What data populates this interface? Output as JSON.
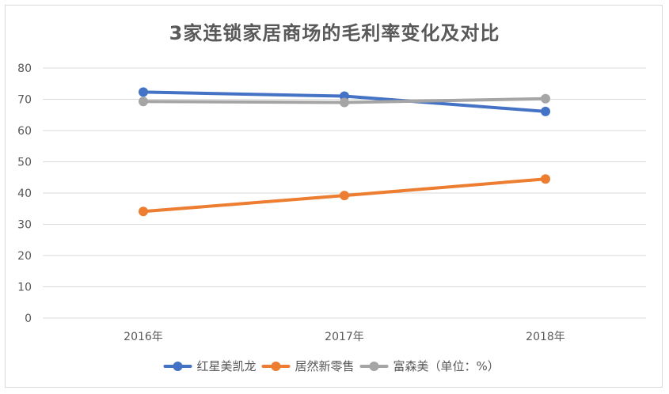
{
  "chart_data": {
    "type": "line",
    "title": "3家连锁家居商场的毛利率变化及对比",
    "categories": [
      "2016年",
      "2017年",
      "2018年"
    ],
    "series": [
      {
        "name": "红星美凯龙",
        "values": [
          72.3,
          71.0,
          66.1
        ],
        "color": "#4472c4"
      },
      {
        "name": "居然新零售",
        "values": [
          34.1,
          39.2,
          44.5
        ],
        "color": "#ed7d31"
      },
      {
        "name": "富森美（单位：%）",
        "values": [
          69.3,
          69.0,
          70.2
        ],
        "color": "#a5a5a5"
      }
    ],
    "ylim": [
      0,
      80
    ],
    "yticks": [
      0,
      10,
      20,
      30,
      40,
      50,
      60,
      70,
      80
    ],
    "grid": true,
    "legend": "bottom",
    "xlabel": "",
    "ylabel": ""
  }
}
